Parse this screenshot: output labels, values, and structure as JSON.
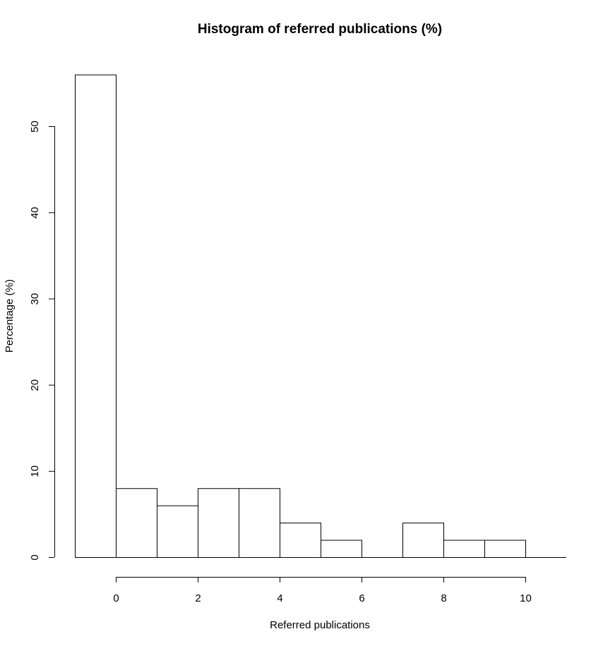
{
  "chart_data": {
    "type": "bar",
    "title": "Histogram of referred publications (%)",
    "xlabel": "Referred publications",
    "ylabel": "Percentage (%)",
    "bins": [
      {
        "start": -1,
        "end": 0,
        "value": 56
      },
      {
        "start": 0,
        "end": 1,
        "value": 8
      },
      {
        "start": 1,
        "end": 2,
        "value": 6
      },
      {
        "start": 2,
        "end": 3,
        "value": 8
      },
      {
        "start": 3,
        "end": 4,
        "value": 8
      },
      {
        "start": 4,
        "end": 5,
        "value": 4
      },
      {
        "start": 5,
        "end": 6,
        "value": 2
      },
      {
        "start": 6,
        "end": 7,
        "value": 0
      },
      {
        "start": 7,
        "end": 8,
        "value": 4
      },
      {
        "start": 8,
        "end": 9,
        "value": 2
      },
      {
        "start": 9,
        "end": 10,
        "value": 2
      },
      {
        "start": 10,
        "end": 11,
        "value": 0
      }
    ],
    "x_ticks": [
      "0",
      "2",
      "4",
      "6",
      "8",
      "10"
    ],
    "y_ticks": [
      "0",
      "10",
      "20",
      "30",
      "40",
      "50"
    ],
    "xlim": [
      -1,
      11
    ],
    "ylim": [
      0,
      56
    ],
    "grid": false,
    "legend": "none"
  }
}
